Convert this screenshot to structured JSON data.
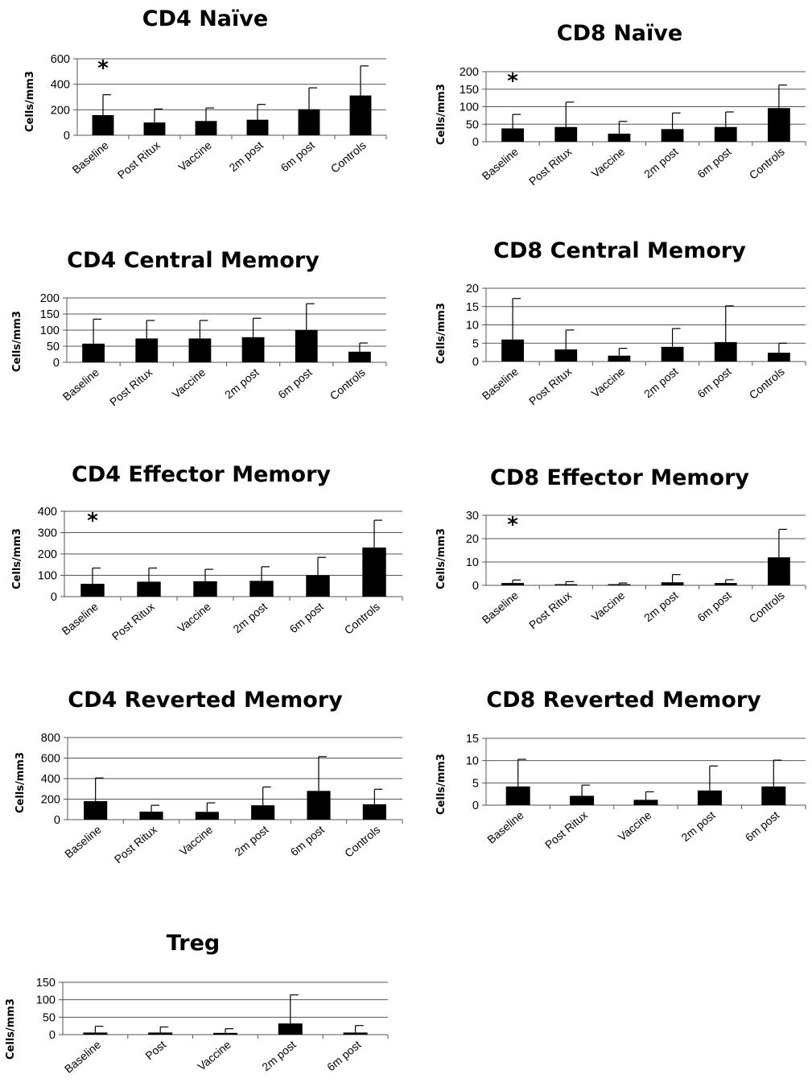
{
  "y_axis_label": "Cells/mm3",
  "chart_data": [
    {
      "type": "bar",
      "title": "CD4 Naïve",
      "ylabel": "Cells/mm3",
      "categories": [
        "Baseline",
        "Post Ritux",
        "Vaccine",
        "2m post",
        "6m post",
        "Controls"
      ],
      "values": [
        158,
        100,
        112,
        122,
        204,
        312
      ],
      "error_upper": [
        318,
        206,
        214,
        242,
        372,
        544
      ],
      "ylim": [
        0,
        600
      ],
      "yticks": [
        0,
        200,
        400,
        600
      ],
      "significance": [
        "*",
        "",
        "",
        "",
        "",
        ""
      ],
      "grid": true
    },
    {
      "type": "bar",
      "title": "CD8 Naïve",
      "ylabel": "Cells/mm3",
      "categories": [
        "Baseline",
        "Post Ritux",
        "Vaccine",
        "2m post",
        "6m post",
        "Controls"
      ],
      "values": [
        38,
        42,
        23,
        36,
        42,
        96
      ],
      "error_upper": [
        78,
        113,
        58,
        82,
        85,
        162
      ],
      "ylim": [
        0,
        200
      ],
      "yticks": [
        0,
        50,
        100,
        150,
        200
      ],
      "significance": [
        "*",
        "",
        "",
        "",
        "",
        ""
      ],
      "grid": true
    },
    {
      "type": "bar",
      "title": "CD4 Central Memory",
      "ylabel": "Cells/mm3",
      "categories": [
        "Baseline",
        "Post Ritux",
        "Vaccine",
        "2m post",
        "6m post",
        "Controls"
      ],
      "values": [
        58,
        74,
        74,
        78,
        100,
        33
      ],
      "error_upper": [
        134,
        130,
        130,
        137,
        182,
        60
      ],
      "ylim": [
        0,
        200
      ],
      "yticks": [
        0,
        50,
        100,
        150,
        200
      ],
      "significance": [
        "",
        "",
        "",
        "",
        "",
        ""
      ],
      "grid": true
    },
    {
      "type": "bar",
      "title": "CD8 Central Memory",
      "ylabel": "Cells/mm3",
      "categories": [
        "Baseline",
        "Post Ritux",
        "Vaccine",
        "2m post",
        "6m post",
        "Controls"
      ],
      "values": [
        6,
        3.3,
        1.6,
        4,
        5.3,
        2.4
      ],
      "error_upper": [
        17.2,
        8.6,
        3.6,
        9,
        15.2,
        5
      ],
      "ylim": [
        0,
        20
      ],
      "yticks": [
        0,
        5,
        10,
        15,
        20
      ],
      "significance": [
        "",
        "",
        "",
        "",
        "",
        ""
      ],
      "grid": true
    },
    {
      "type": "bar",
      "title": "CD4 Effector Memory",
      "ylabel": "Cells/mm3",
      "categories": [
        "Baseline",
        "Post Ritux",
        "Vaccine",
        "2m post",
        "6m post",
        "Controls"
      ],
      "values": [
        60,
        70,
        72,
        74,
        100,
        230
      ],
      "error_upper": [
        134,
        134,
        128,
        140,
        184,
        358
      ],
      "ylim": [
        0,
        400
      ],
      "yticks": [
        0,
        100,
        200,
        300,
        400
      ],
      "significance": [
        "*",
        "",
        "",
        "",
        "",
        ""
      ],
      "grid": true
    },
    {
      "type": "bar",
      "title": "CD8 Effector Memory",
      "ylabel": "Cells/mm3",
      "categories": [
        "Baseline",
        "Post Ritux",
        "Vaccine",
        "2m post",
        "6m post",
        "Controls"
      ],
      "values": [
        1,
        0.5,
        0.5,
        1.3,
        1,
        12
      ],
      "error_upper": [
        2.3,
        1.6,
        1,
        4.6,
        2.4,
        24
      ],
      "ylim": [
        0,
        30
      ],
      "yticks": [
        0,
        10,
        20,
        30
      ],
      "significance": [
        "*",
        "",
        "",
        "",
        "",
        ""
      ],
      "grid": true
    },
    {
      "type": "bar",
      "title": "CD4 Reverted Memory",
      "ylabel": "Cells/mm3",
      "categories": [
        "Baseline",
        "Post Ritux",
        "Vaccine",
        "2m post",
        "6m post",
        "Controls"
      ],
      "values": [
        180,
        78,
        76,
        140,
        280,
        150
      ],
      "error_upper": [
        406,
        140,
        164,
        318,
        614,
        296
      ],
      "ylim": [
        0,
        800
      ],
      "yticks": [
        0,
        200,
        400,
        600,
        800
      ],
      "significance": [
        "",
        "",
        "",
        "",
        "",
        ""
      ],
      "grid": true
    },
    {
      "type": "bar",
      "title": "CD8 Reverted Memory",
      "ylabel": "Cells/mm3",
      "categories": [
        "Baseline",
        "Post Ritux",
        "Vaccine",
        "2m post",
        "6m post"
      ],
      "values": [
        4.2,
        2.1,
        1.2,
        3.3,
        4.2
      ],
      "error_upper": [
        10.3,
        4.5,
        3,
        8.8,
        10.1
      ],
      "ylim": [
        0,
        15
      ],
      "yticks": [
        0,
        5,
        10,
        15
      ],
      "significance": [
        "",
        "",
        "",
        "",
        ""
      ],
      "grid": true
    },
    {
      "type": "bar",
      "title": "Treg",
      "ylabel": "Cells/mm3",
      "categories": [
        "Baseline",
        "Post",
        "Vaccine",
        "2m post",
        "6m post"
      ],
      "values": [
        6,
        6,
        5,
        32,
        6
      ],
      "error_upper": [
        24,
        22,
        17,
        114,
        26
      ],
      "ylim": [
        0,
        150
      ],
      "yticks": [
        0,
        50,
        100,
        150
      ],
      "significance": [
        "",
        "",
        "",
        "",
        ""
      ],
      "grid": true
    }
  ]
}
